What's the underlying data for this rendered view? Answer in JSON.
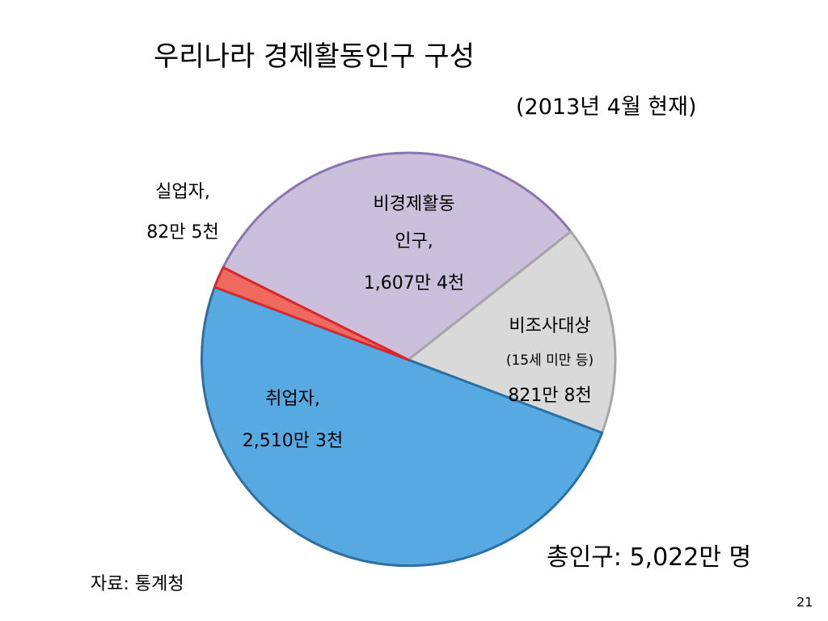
{
  "slide": {
    "title": "우리나라 경제활동인구 구성",
    "subtitle": "(2013년 4월 현재)",
    "total": "총인구: 5,022만 명",
    "source": "자료: 통계청",
    "page_number": "21"
  },
  "chart_data": {
    "type": "pie",
    "unit": "만",
    "total_value": 5022,
    "slices": [
      {
        "name": "비경제활동인구",
        "value": 1607.4,
        "color": "#CBC0DC",
        "stroke": "#8B74B2",
        "label_lines": [
          "비경제활동",
          "인구,",
          "1,607만 4천"
        ]
      },
      {
        "name": "비조사대상",
        "value": 821.8,
        "color": "#D9D9D9",
        "stroke": "#A6A6A6",
        "label_lines": [
          "비조사대상",
          "(15세 미만 등)",
          "821만 8천"
        ]
      },
      {
        "name": "취업자",
        "value": 2510.3,
        "color": "#56A9E1",
        "stroke": "#2D6FA3",
        "label_lines": [
          "취업자,",
          "2,510만 3천"
        ]
      },
      {
        "name": "실업자",
        "value": 82.5,
        "color": "#EE6A5E",
        "stroke": "#D9272E",
        "label_lines": [
          "실업자,",
          "82만 5천"
        ]
      }
    ]
  }
}
